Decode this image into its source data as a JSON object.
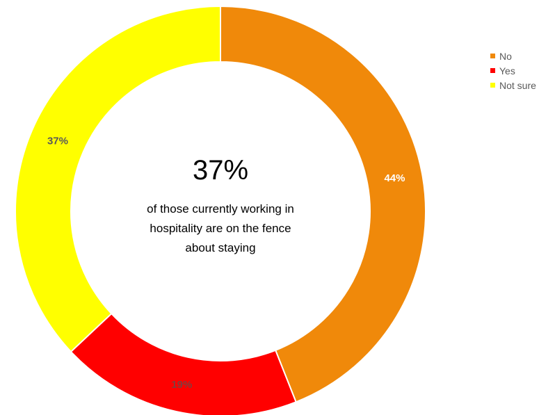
{
  "chart_data": {
    "type": "pie",
    "donut": true,
    "categories": [
      "No",
      "Yes",
      "Not sure"
    ],
    "values": [
      44,
      19,
      37
    ],
    "data_labels": [
      "44%",
      "19%",
      "37%"
    ],
    "colors": [
      "#F0890A",
      "#FF0000",
      "#FFFF00"
    ],
    "label_colors": [
      "#ffffff",
      "#7f3f3f",
      "#595959"
    ],
    "legend_position": "top-right",
    "center_text": {
      "headline": "37%",
      "caption_lines": [
        "of those currently working in",
        "hospitality are on the fence",
        "about staying"
      ]
    }
  }
}
